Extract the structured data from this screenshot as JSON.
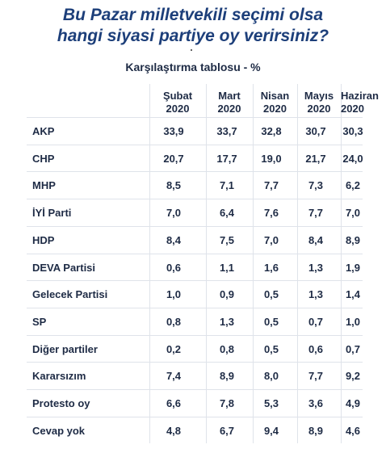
{
  "title_lines": [
    "Bu Pazar milletvekili seçimi olsa",
    "hangi siyasi partiye oy verirsiniz?"
  ],
  "subtitle": "Karşılaştırma tablosu - %",
  "columns": [
    {
      "month": "Şubat",
      "year": "2020"
    },
    {
      "month": "Mart",
      "year": "2020"
    },
    {
      "month": "Nisan",
      "year": "2020"
    },
    {
      "month": "Mayıs",
      "year": "2020"
    },
    {
      "month": "Haziran",
      "year": "2020"
    }
  ],
  "rows": [
    {
      "label": "AKP",
      "values": [
        "33,9",
        "33,7",
        "32,8",
        "30,7",
        "30,3"
      ]
    },
    {
      "label": "CHP",
      "values": [
        "20,7",
        "17,7",
        "19,0",
        "21,7",
        "24,0"
      ]
    },
    {
      "label": "MHP",
      "values": [
        "8,5",
        "7,1",
        "7,7",
        "7,3",
        "6,2"
      ]
    },
    {
      "label": "İYİ Parti",
      "values": [
        "7,0",
        "6,4",
        "7,6",
        "7,7",
        "7,0"
      ]
    },
    {
      "label": "HDP",
      "values": [
        "8,4",
        "7,5",
        "7,0",
        "8,4",
        "8,9"
      ]
    },
    {
      "label": "DEVA Partisi",
      "values": [
        "0,6",
        "1,1",
        "1,6",
        "1,3",
        "1,9"
      ]
    },
    {
      "label": "Gelecek Partisi",
      "values": [
        "1,0",
        "0,9",
        "0,5",
        "1,3",
        "1,4"
      ]
    },
    {
      "label": "SP",
      "values": [
        "0,8",
        "1,3",
        "0,5",
        "0,7",
        "1,0"
      ]
    },
    {
      "label": "Diğer partiler",
      "values": [
        "0,2",
        "0,8",
        "0,5",
        "0,6",
        "0,7"
      ]
    },
    {
      "label": "Kararsızım",
      "values": [
        "7,4",
        "8,9",
        "8,0",
        "7,7",
        "9,2"
      ]
    },
    {
      "label": "Protesto oy",
      "values": [
        "6,6",
        "7,8",
        "5,3",
        "3,6",
        "4,9"
      ]
    },
    {
      "label": "Cevap yok",
      "values": [
        "4,8",
        "6,7",
        "9,4",
        "8,9",
        "4,6"
      ]
    }
  ]
}
